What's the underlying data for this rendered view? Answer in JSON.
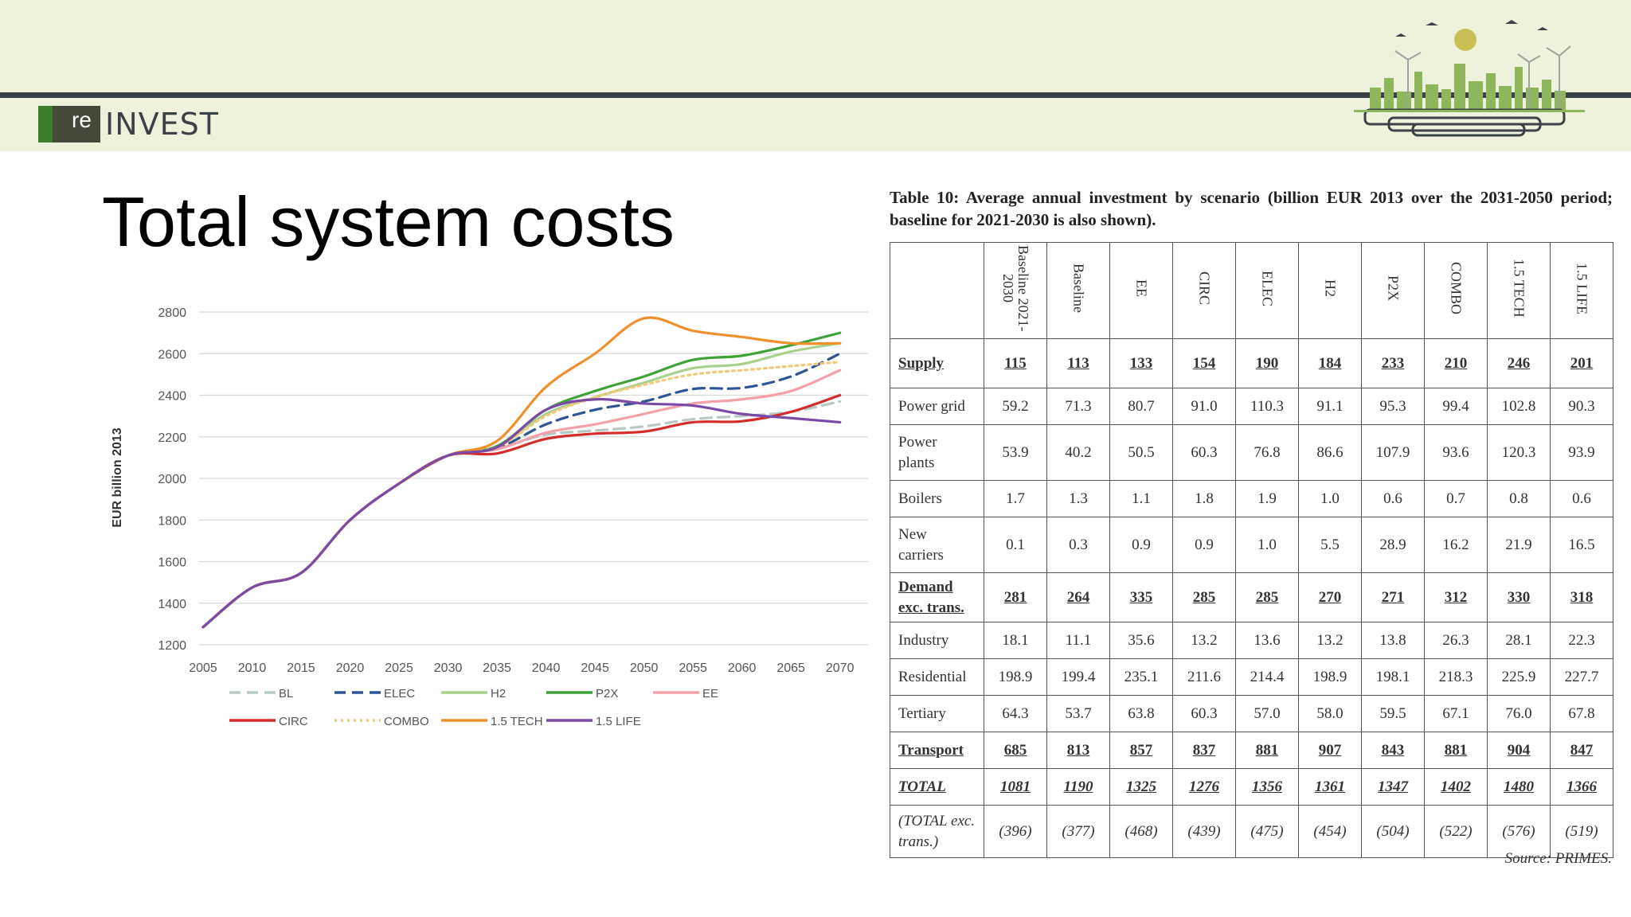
{
  "header": {
    "logo_re": "re",
    "logo_text": "INVEST"
  },
  "slide": {
    "title": "Total system costs"
  },
  "colors": {
    "header_bg": "#eef2dc",
    "header_line": "#3c4147",
    "logo_green": "#3e7d2e"
  },
  "chart_data": {
    "type": "line",
    "ylabel": "EUR billion 2013",
    "xlabel": "",
    "ylim": [
      1200,
      2800
    ],
    "yticks": [
      1200,
      1400,
      1600,
      1800,
      2000,
      2200,
      2400,
      2600,
      2800
    ],
    "x": [
      2005,
      2010,
      2015,
      2020,
      2025,
      2030,
      2035,
      2040,
      2045,
      2050,
      2055,
      2060,
      2065,
      2070
    ],
    "grid": true,
    "legend_position": "bottom",
    "series": [
      {
        "name": "BL",
        "color": "#b8c8c4",
        "dash": "dash",
        "values": [
          1285,
          1475,
          1545,
          1800,
          1975,
          2110,
          2145,
          2210,
          2230,
          2250,
          2285,
          2300,
          2320,
          2370
        ]
      },
      {
        "name": "ELEC",
        "color": "#2f5597",
        "dash": "dash",
        "values": [
          1285,
          1475,
          1545,
          1800,
          1975,
          2110,
          2145,
          2260,
          2330,
          2370,
          2430,
          2435,
          2490,
          2600
        ]
      },
      {
        "name": "H2",
        "color": "#a9d18e",
        "dash": "solid",
        "values": [
          1285,
          1475,
          1545,
          1800,
          1975,
          2110,
          2150,
          2310,
          2390,
          2460,
          2530,
          2550,
          2610,
          2650
        ]
      },
      {
        "name": "P2X",
        "color": "#3fa33a",
        "dash": "solid",
        "values": [
          1285,
          1475,
          1545,
          1800,
          1975,
          2110,
          2155,
          2330,
          2420,
          2490,
          2570,
          2590,
          2640,
          2700
        ]
      },
      {
        "name": "EE",
        "color": "#f4a0a8",
        "dash": "solid",
        "values": [
          1285,
          1475,
          1545,
          1800,
          1975,
          2110,
          2140,
          2220,
          2260,
          2310,
          2360,
          2380,
          2420,
          2520
        ]
      },
      {
        "name": "CIRC",
        "color": "#d62b2b",
        "dash": "solid",
        "values": [
          1285,
          1475,
          1545,
          1800,
          1975,
          2110,
          2120,
          2190,
          2215,
          2225,
          2270,
          2275,
          2320,
          2400
        ]
      },
      {
        "name": "COMBO",
        "color": "#f6c97a",
        "dash": "dot",
        "values": [
          1285,
          1475,
          1545,
          1800,
          1975,
          2110,
          2150,
          2300,
          2390,
          2450,
          2500,
          2520,
          2540,
          2560
        ]
      },
      {
        "name": "1.5 TECH",
        "color": "#f0902a",
        "dash": "solid",
        "values": [
          1285,
          1475,
          1545,
          1800,
          1975,
          2110,
          2180,
          2440,
          2600,
          2770,
          2710,
          2680,
          2650,
          2650
        ]
      },
      {
        "name": "1.5 LIFE",
        "color": "#7b4aa6",
        "dash": "solid",
        "values": [
          1285,
          1475,
          1545,
          1800,
          1975,
          2110,
          2150,
          2330,
          2380,
          2360,
          2350,
          2310,
          2290,
          2270
        ]
      }
    ]
  },
  "table": {
    "caption": "Table 10: Average annual investment by scenario (billion EUR 2013 over the 2031-2050 period; baseline for 2021-2030 is also shown).",
    "columns": [
      "Baseline 2021-2030",
      "Baseline",
      "EE",
      "CIRC",
      "ELEC",
      "H2",
      "P2X",
      "COMBO",
      "1.5 TECH",
      "1.5 LIFE"
    ],
    "rows": [
      {
        "label": "Supply",
        "style": "bold",
        "values": [
          "115",
          "113",
          "133",
          "154",
          "190",
          "184",
          "233",
          "210",
          "246",
          "201"
        ]
      },
      {
        "label": "Power grid",
        "style": "normal",
        "values": [
          "59.2",
          "71.3",
          "80.7",
          "91.0",
          "110.3",
          "91.1",
          "95.3",
          "99.4",
          "102.8",
          "90.3"
        ]
      },
      {
        "label": "Power plants",
        "style": "normal",
        "values": [
          "53.9",
          "40.2",
          "50.5",
          "60.3",
          "76.8",
          "86.6",
          "107.9",
          "93.6",
          "120.3",
          "93.9"
        ]
      },
      {
        "label": "Boilers",
        "style": "normal",
        "values": [
          "1.7",
          "1.3",
          "1.1",
          "1.8",
          "1.9",
          "1.0",
          "0.6",
          "0.7",
          "0.8",
          "0.6"
        ]
      },
      {
        "label": "New carriers",
        "style": "normal",
        "values": [
          "0.1",
          "0.3",
          "0.9",
          "0.9",
          "1.0",
          "5.5",
          "28.9",
          "16.2",
          "21.9",
          "16.5"
        ]
      },
      {
        "label": "Demand exc. trans.",
        "style": "bold",
        "values": [
          "281",
          "264",
          "335",
          "285",
          "285",
          "270",
          "271",
          "312",
          "330",
          "318"
        ]
      },
      {
        "label": "Industry",
        "style": "normal",
        "values": [
          "18.1",
          "11.1",
          "35.6",
          "13.2",
          "13.6",
          "13.2",
          "13.8",
          "26.3",
          "28.1",
          "22.3"
        ]
      },
      {
        "label": "Residential",
        "style": "normal",
        "values": [
          "198.9",
          "199.4",
          "235.1",
          "211.6",
          "214.4",
          "198.9",
          "198.1",
          "218.3",
          "225.9",
          "227.7"
        ]
      },
      {
        "label": "Tertiary",
        "style": "normal",
        "values": [
          "64.3",
          "53.7",
          "63.8",
          "60.3",
          "57.0",
          "58.0",
          "59.5",
          "67.1",
          "76.0",
          "67.8"
        ]
      },
      {
        "label": "Transport",
        "style": "bold",
        "values": [
          "685",
          "813",
          "857",
          "837",
          "881",
          "907",
          "843",
          "881",
          "904",
          "847"
        ]
      },
      {
        "label": "TOTAL",
        "style": "bold-italic",
        "values": [
          "1081",
          "1190",
          "1325",
          "1276",
          "1356",
          "1361",
          "1347",
          "1402",
          "1480",
          "1366"
        ]
      },
      {
        "label": "(TOTAL exc. trans.)",
        "style": "italic",
        "values": [
          "(396)",
          "(377)",
          "(468)",
          "(439)",
          "(475)",
          "(454)",
          "(504)",
          "(522)",
          "(576)",
          "(519)"
        ]
      }
    ],
    "source": "Source: PRIMES."
  }
}
